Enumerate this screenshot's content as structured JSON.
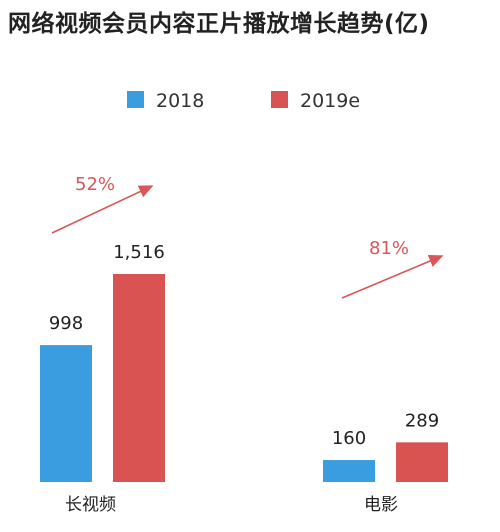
{
  "title": "网络视频会员内容正片播放增长趋势(亿)",
  "colors": {
    "s2018": "#3a9de0",
    "s2019": "#d95353",
    "arrow": "#d95757"
  },
  "chart_data": {
    "type": "bar",
    "categories": [
      "长视频",
      "电影"
    ],
    "series": [
      {
        "name": "2018",
        "values": [
          998,
          160
        ],
        "labels": [
          "998",
          "160"
        ]
      },
      {
        "name": "2019e",
        "values": [
          1516,
          289
        ],
        "labels": [
          "1,516",
          "289"
        ]
      }
    ],
    "growth_annotations": [
      "52%",
      "81%"
    ],
    "title": "网络视频会员内容正片播放增长趋势(亿)",
    "xlabel": "",
    "ylabel": "",
    "legend": "top-center",
    "grid": false
  }
}
